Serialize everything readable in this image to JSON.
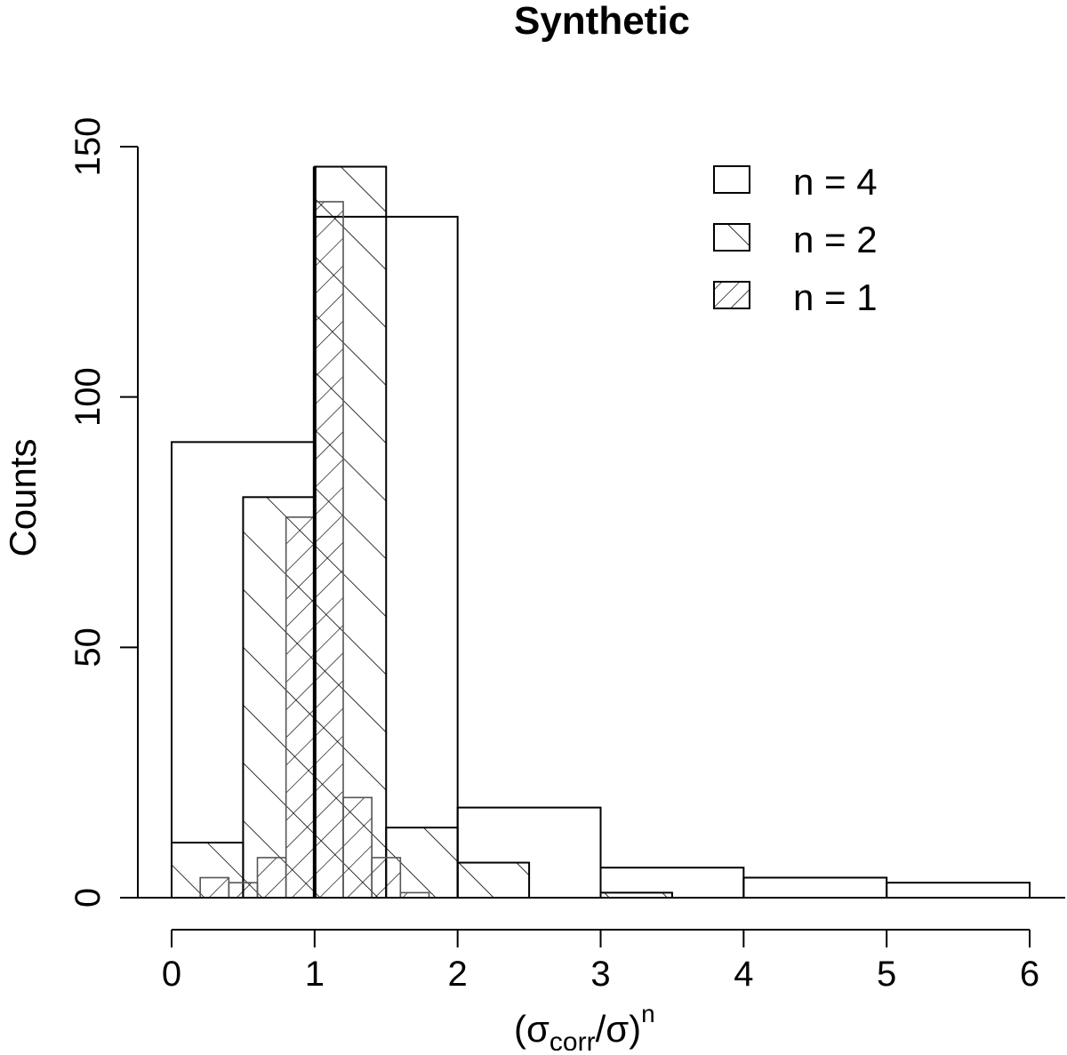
{
  "chart_data": {
    "type": "histogram",
    "title": "Synthetic",
    "xlabel": {
      "open": "(σ",
      "sub": "corr",
      "mid": "/σ)",
      "sup": "n"
    },
    "ylabel": "Counts",
    "xlim": [
      0,
      6
    ],
    "ylim": [
      0,
      150
    ],
    "x_ticks": [
      "0",
      "1",
      "2",
      "3",
      "4",
      "5",
      "6"
    ],
    "y_ticks": [
      "0",
      "50",
      "100",
      "150"
    ],
    "reference_line_x": 1,
    "legend_position": "top-right",
    "series": [
      {
        "name": "n = 4",
        "pattern": "none",
        "bins": [
          {
            "x0": 0,
            "x1": 1,
            "count": 91
          },
          {
            "x0": 1,
            "x1": 2,
            "count": 136
          },
          {
            "x0": 2,
            "x1": 3,
            "count": 18
          },
          {
            "x0": 3,
            "x1": 4,
            "count": 6
          },
          {
            "x0": 4,
            "x1": 5,
            "count": 4
          },
          {
            "x0": 5,
            "x1": 6,
            "count": 3
          }
        ]
      },
      {
        "name": "n = 2",
        "pattern": "hatch-forward",
        "bins": [
          {
            "x0": 0,
            "x1": 0.5,
            "count": 11
          },
          {
            "x0": 0.5,
            "x1": 1,
            "count": 80
          },
          {
            "x0": 1,
            "x1": 1.5,
            "count": 146
          },
          {
            "x0": 1.5,
            "x1": 2,
            "count": 14
          },
          {
            "x0": 2,
            "x1": 2.5,
            "count": 7
          },
          {
            "x0": 2.5,
            "x1": 3,
            "count": 0
          },
          {
            "x0": 3,
            "x1": 3.5,
            "count": 1
          }
        ]
      },
      {
        "name": "n = 1",
        "pattern": "hatch-backward",
        "bins": [
          {
            "x0": 0.2,
            "x1": 0.4,
            "count": 4
          },
          {
            "x0": 0.4,
            "x1": 0.6,
            "count": 3
          },
          {
            "x0": 0.6,
            "x1": 0.8,
            "count": 8
          },
          {
            "x0": 0.8,
            "x1": 1.0,
            "count": 76
          },
          {
            "x0": 1.0,
            "x1": 1.2,
            "count": 139
          },
          {
            "x0": 1.2,
            "x1": 1.4,
            "count": 20
          },
          {
            "x0": 1.4,
            "x1": 1.6,
            "count": 8
          },
          {
            "x0": 1.6,
            "x1": 1.8,
            "count": 1
          }
        ]
      }
    ]
  }
}
